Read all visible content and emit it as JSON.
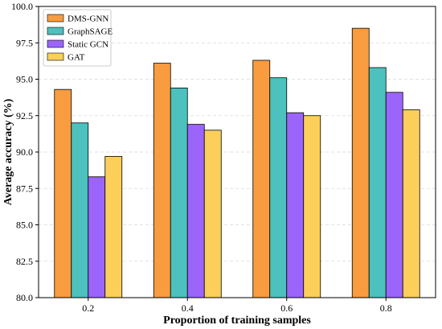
{
  "chart_data": {
    "type": "bar",
    "xlabel": "Proportion of training samples",
    "ylabel": "Average accuracy (%)",
    "categories": [
      "0.2",
      "0.4",
      "0.6",
      "0.8"
    ],
    "ylim": [
      80.0,
      100.0
    ],
    "yticks": [
      "80.0",
      "82.5",
      "85.0",
      "87.5",
      "90.0",
      "92.5",
      "95.0",
      "97.5",
      "100.0"
    ],
    "grid": "horizontal dashed",
    "legend_position": "top-left",
    "series": [
      {
        "name": "DMS-GNN",
        "color": "#f89c3f",
        "values": [
          94.3,
          96.1,
          96.3,
          98.5
        ]
      },
      {
        "name": "GraphSAGE",
        "color": "#4cc1bd",
        "values": [
          92.0,
          94.4,
          95.1,
          95.8
        ]
      },
      {
        "name": "Static GCN",
        "color": "#9b65fb",
        "values": [
          88.3,
          91.9,
          92.7,
          94.1
        ]
      },
      {
        "name": "GAT",
        "color": "#fbcf5a",
        "values": [
          89.7,
          91.5,
          92.5,
          92.9
        ]
      }
    ]
  }
}
